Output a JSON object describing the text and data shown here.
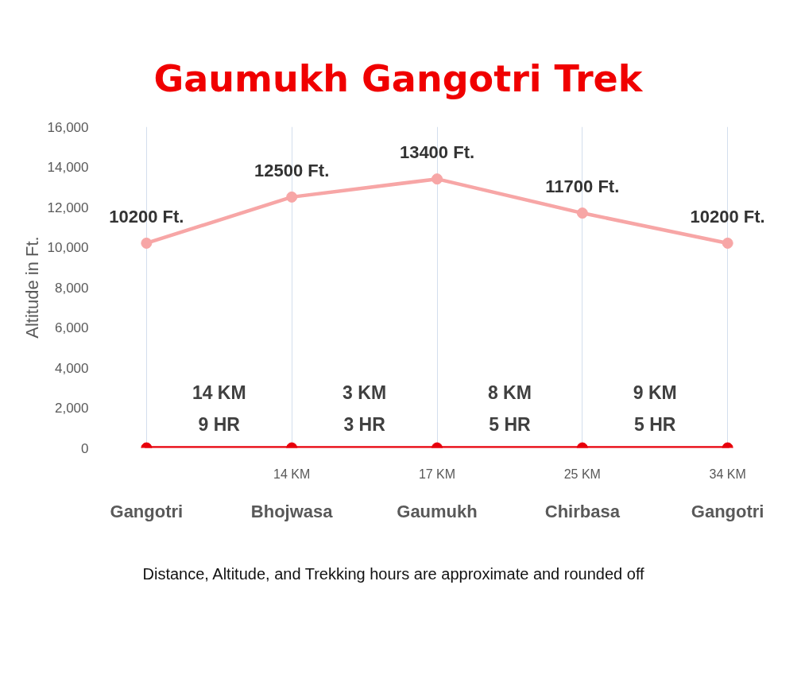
{
  "chart_data": {
    "type": "line",
    "title": "Gaumukh Gangotri Trek",
    "ylabel": "Altitude in Ft.",
    "categories": [
      "Gangotri",
      "Bhojwasa",
      "Gaumukh",
      "Chirbasa",
      "Gangotri"
    ],
    "series": [
      {
        "color": "#f7a6a6",
        "values": [
          10200,
          12500,
          13400,
          11700,
          10200
        ],
        "value_labels": [
          "10200 Ft.",
          "12500 Ft.",
          "13400 Ft.",
          "11700 Ft.",
          "10200 Ft."
        ]
      },
      {
        "color": "#e8000b",
        "values": [
          0,
          0,
          0,
          0,
          0
        ]
      }
    ],
    "ylim": [
      0,
      16000
    ],
    "yticks": [
      0,
      {
        "value": 2000,
        "label": "2,000"
      },
      {
        "value": 4000,
        "label": "4,000"
      },
      {
        "value": 6000,
        "label": "6,000"
      },
      {
        "value": 8000,
        "label": "8,000"
      },
      {
        "value": 10000,
        "label": "10,000"
      },
      {
        "value": 12000,
        "label": "12,000"
      },
      {
        "value": 14000,
        "label": "14,000"
      },
      {
        "value": 16000,
        "label": "16,000"
      }
    ],
    "grid": "x",
    "marker": "circle",
    "line_style": "solid",
    "annotations": [
      "14 KM\n9 HR",
      "3 KM\n3 HR",
      "8 KM\n5 HR",
      "9 KM\n5 HR",
      "14 KM",
      "17 KM",
      "25 KM",
      "34 KM",
      "Distance, Altitude, and Trekking hours are approximate and rounded off"
    ]
  }
}
